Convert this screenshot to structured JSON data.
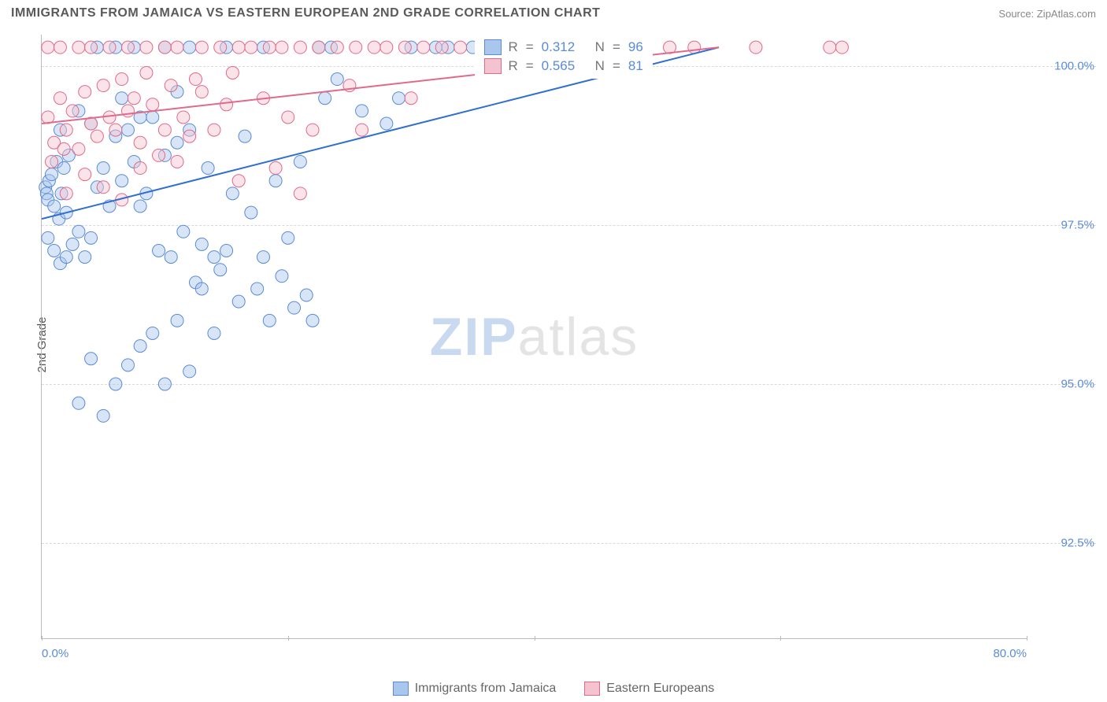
{
  "title": "IMMIGRANTS FROM JAMAICA VS EASTERN EUROPEAN 2ND GRADE CORRELATION CHART",
  "source_label": "Source:",
  "source_name": "ZipAtlas.com",
  "ylabel": "2nd Grade",
  "watermark_zip": "ZIP",
  "watermark_rest": "atlas",
  "chart": {
    "type": "scatter",
    "xlim": [
      0,
      80
    ],
    "ylim": [
      91,
      100.5
    ],
    "xticks": [
      0,
      20,
      40,
      60,
      80
    ],
    "xtick_labels": [
      "0.0%",
      "",
      "",
      "",
      "80.0%"
    ],
    "ygrid": [
      92.5,
      95.0,
      97.5,
      100.0
    ],
    "ytick_labels": [
      "92.5%",
      "95.0%",
      "97.5%",
      "100.0%"
    ],
    "background": "#ffffff",
    "grid_color": "#d9d9d9",
    "axis_color": "#bbbbbb",
    "marker_radius": 8,
    "marker_opacity": 0.45,
    "line_width": 2,
    "series": [
      {
        "name": "Immigrants from Jamaica",
        "fill": "#a9c6ec",
        "stroke": "#5a8bd6",
        "line_color": "#2f6fd0",
        "R": "0.312",
        "N": "96",
        "trend": {
          "x1": 0,
          "y1": 97.6,
          "x2": 55,
          "y2": 100.3
        },
        "points": [
          [
            0.3,
            98.1
          ],
          [
            0.4,
            98.0
          ],
          [
            0.5,
            97.9
          ],
          [
            0.6,
            98.2
          ],
          [
            0.8,
            98.3
          ],
          [
            1.0,
            97.8
          ],
          [
            1.2,
            98.5
          ],
          [
            1.4,
            97.6
          ],
          [
            1.6,
            98.0
          ],
          [
            1.8,
            98.4
          ],
          [
            2.0,
            97.7
          ],
          [
            2.2,
            98.6
          ],
          [
            0.5,
            97.3
          ],
          [
            1.0,
            97.1
          ],
          [
            1.5,
            96.9
          ],
          [
            2.0,
            97.0
          ],
          [
            2.5,
            97.2
          ],
          [
            3.0,
            97.4
          ],
          [
            3.5,
            97.0
          ],
          [
            4.0,
            97.3
          ],
          [
            4.5,
            98.1
          ],
          [
            5.0,
            98.4
          ],
          [
            5.5,
            97.8
          ],
          [
            6.0,
            98.9
          ],
          [
            6.5,
            98.2
          ],
          [
            7.0,
            99.0
          ],
          [
            7.5,
            98.5
          ],
          [
            8.0,
            97.8
          ],
          [
            8.5,
            98.0
          ],
          [
            9.0,
            99.2
          ],
          [
            9.5,
            97.1
          ],
          [
            10.0,
            98.6
          ],
          [
            10.5,
            97.0
          ],
          [
            11.0,
            98.8
          ],
          [
            11.5,
            97.4
          ],
          [
            12.0,
            99.0
          ],
          [
            12.5,
            96.6
          ],
          [
            13.0,
            97.2
          ],
          [
            13.5,
            98.4
          ],
          [
            14.0,
            97.0
          ],
          [
            14.5,
            96.8
          ],
          [
            15.0,
            97.1
          ],
          [
            15.5,
            98.0
          ],
          [
            16.0,
            96.3
          ],
          [
            16.5,
            98.9
          ],
          [
            17.0,
            97.7
          ],
          [
            17.5,
            96.5
          ],
          [
            18.0,
            97.0
          ],
          [
            18.5,
            96.0
          ],
          [
            19.0,
            98.2
          ],
          [
            19.5,
            96.7
          ],
          [
            20.0,
            97.3
          ],
          [
            20.5,
            96.2
          ],
          [
            21.0,
            98.5
          ],
          [
            21.5,
            96.4
          ],
          [
            22.0,
            96.0
          ],
          [
            22.5,
            100.3
          ],
          [
            23.0,
            99.5
          ],
          [
            23.5,
            100.3
          ],
          [
            24.0,
            99.8
          ],
          [
            4.0,
            95.4
          ],
          [
            5.0,
            94.5
          ],
          [
            6.0,
            95.0
          ],
          [
            7.0,
            95.3
          ],
          [
            9.0,
            95.8
          ],
          [
            10.0,
            95.0
          ],
          [
            11.0,
            96.0
          ],
          [
            12.0,
            95.2
          ],
          [
            13.0,
            96.5
          ],
          [
            14.0,
            95.8
          ],
          [
            3.0,
            94.7
          ],
          [
            8.0,
            95.6
          ],
          [
            4.5,
            100.3
          ],
          [
            6.0,
            100.3
          ],
          [
            7.5,
            100.3
          ],
          [
            10.0,
            100.3
          ],
          [
            12.0,
            100.3
          ],
          [
            15.0,
            100.3
          ],
          [
            18.0,
            100.3
          ],
          [
            30.0,
            100.3
          ],
          [
            32.0,
            100.3
          ],
          [
            33.0,
            100.3
          ],
          [
            35.0,
            100.3
          ],
          [
            37.5,
            100.3
          ],
          [
            40.0,
            100.3
          ],
          [
            42.0,
            100.3
          ],
          [
            44.0,
            100.3
          ],
          [
            26.0,
            99.3
          ],
          [
            1.5,
            99.0
          ],
          [
            3.0,
            99.3
          ],
          [
            4.0,
            99.1
          ],
          [
            6.5,
            99.5
          ],
          [
            8.0,
            99.2
          ],
          [
            11.0,
            99.6
          ],
          [
            28.0,
            99.1
          ],
          [
            29.0,
            99.5
          ]
        ]
      },
      {
        "name": "Eastern Europeans",
        "fill": "#f3c3cf",
        "stroke": "#e06a8a",
        "line_color": "#e06a8a",
        "R": "0.565",
        "N": "81",
        "trend": {
          "x1": 0,
          "y1": 99.1,
          "x2": 55,
          "y2": 100.3
        },
        "points": [
          [
            0.5,
            99.2
          ],
          [
            1.0,
            98.8
          ],
          [
            1.5,
            99.5
          ],
          [
            2.0,
            99.0
          ],
          [
            2.5,
            99.3
          ],
          [
            3.0,
            98.7
          ],
          [
            3.5,
            99.6
          ],
          [
            4.0,
            99.1
          ],
          [
            4.5,
            98.9
          ],
          [
            5.0,
            99.7
          ],
          [
            5.5,
            99.2
          ],
          [
            6.0,
            99.0
          ],
          [
            6.5,
            99.8
          ],
          [
            7.0,
            99.3
          ],
          [
            7.5,
            99.5
          ],
          [
            8.0,
            98.8
          ],
          [
            8.5,
            99.9
          ],
          [
            9.0,
            99.4
          ],
          [
            9.5,
            98.6
          ],
          [
            10.0,
            99.0
          ],
          [
            10.5,
            99.7
          ],
          [
            11.0,
            98.5
          ],
          [
            11.5,
            99.2
          ],
          [
            12.0,
            98.9
          ],
          [
            0.5,
            100.3
          ],
          [
            1.5,
            100.3
          ],
          [
            3.0,
            100.3
          ],
          [
            4.0,
            100.3
          ],
          [
            5.5,
            100.3
          ],
          [
            7.0,
            100.3
          ],
          [
            8.5,
            100.3
          ],
          [
            10.0,
            100.3
          ],
          [
            11.0,
            100.3
          ],
          [
            13.0,
            100.3
          ],
          [
            14.5,
            100.3
          ],
          [
            16.0,
            100.3
          ],
          [
            17.0,
            100.3
          ],
          [
            18.5,
            100.3
          ],
          [
            19.5,
            100.3
          ],
          [
            21.0,
            100.3
          ],
          [
            22.5,
            100.3
          ],
          [
            24.0,
            100.3
          ],
          [
            25.5,
            100.3
          ],
          [
            27.0,
            100.3
          ],
          [
            28.0,
            100.3
          ],
          [
            29.5,
            100.3
          ],
          [
            31.0,
            100.3
          ],
          [
            32.5,
            100.3
          ],
          [
            34.0,
            100.3
          ],
          [
            38.0,
            100.3
          ],
          [
            40.0,
            100.3
          ],
          [
            42.5,
            100.3
          ],
          [
            45.0,
            100.3
          ],
          [
            47.0,
            100.3
          ],
          [
            48.5,
            100.3
          ],
          [
            51.0,
            100.3
          ],
          [
            53.0,
            100.3
          ],
          [
            58.0,
            100.3
          ],
          [
            64.0,
            100.3
          ],
          [
            65.0,
            100.3
          ],
          [
            13.0,
            99.6
          ],
          [
            14.0,
            99.0
          ],
          [
            15.0,
            99.4
          ],
          [
            16.0,
            98.2
          ],
          [
            18.0,
            99.5
          ],
          [
            19.0,
            98.4
          ],
          [
            20.0,
            99.2
          ],
          [
            21.0,
            98.0
          ],
          [
            22.0,
            99.0
          ],
          [
            25.0,
            99.7
          ],
          [
            26.0,
            99.0
          ],
          [
            30.0,
            99.5
          ],
          [
            2.0,
            98.0
          ],
          [
            3.5,
            98.3
          ],
          [
            5.0,
            98.1
          ],
          [
            6.5,
            97.9
          ],
          [
            8.0,
            98.4
          ],
          [
            0.8,
            98.5
          ],
          [
            1.8,
            98.7
          ],
          [
            12.5,
            99.8
          ],
          [
            15.5,
            99.9
          ]
        ]
      }
    ],
    "legend": {
      "series1_label": "Immigrants from Jamaica",
      "series2_label": "Eastern Europeans",
      "r_label": "R",
      "n_label": "N",
      "eq": "="
    }
  }
}
